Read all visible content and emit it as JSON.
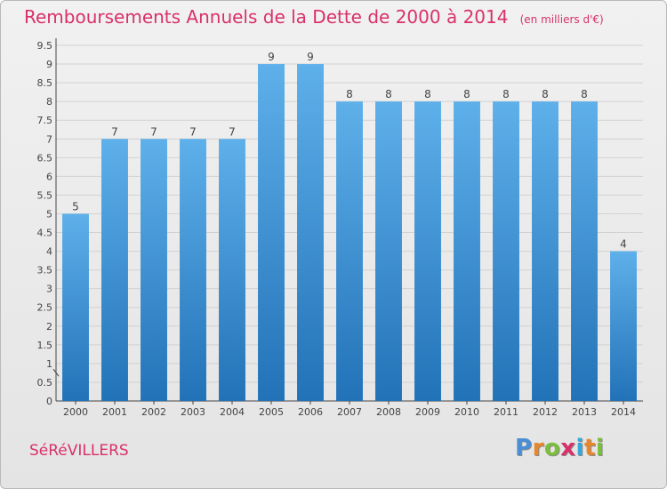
{
  "title": "Remboursements Annuels de la Dette de 2000 à 2014",
  "subtitle": "(en milliers d'€)",
  "commune": "SéRéVILLERS",
  "logo": {
    "letters": [
      "P",
      "r",
      "o",
      "x",
      "i",
      "t",
      "i"
    ],
    "colors": [
      "#4a8fd6",
      "#e8862a",
      "#7bbf3a",
      "#d9306a",
      "#3aa7d9",
      "#e8862a",
      "#7bbf3a"
    ]
  },
  "colors": {
    "accent": "#d9306a",
    "bar_top": "#5eb0ea",
    "bar_bottom": "#2272b8"
  },
  "chart_data": {
    "type": "bar",
    "categories": [
      "2000",
      "2001",
      "2002",
      "2003",
      "2004",
      "2005",
      "2006",
      "2007",
      "2008",
      "2009",
      "2010",
      "2011",
      "2012",
      "2013",
      "2014"
    ],
    "values": [
      5,
      7,
      7,
      7,
      7,
      9,
      9,
      8,
      8,
      8,
      8,
      8,
      8,
      8,
      4
    ],
    "data_labels": [
      "5",
      "7",
      "7",
      "7",
      "7",
      "9",
      "9",
      "8",
      "8",
      "8",
      "8",
      "8",
      "8",
      "8",
      "4"
    ],
    "yticks": [
      "0",
      "0.5",
      "1",
      "1.5",
      "2",
      "2.5",
      "3",
      "3.5",
      "4",
      "4.5",
      "5",
      "5.5",
      "6",
      "6.5",
      "7",
      "7.5",
      "8",
      "8.5",
      "9",
      "9.5"
    ],
    "ylim": [
      0,
      9.5
    ],
    "grid": "y"
  }
}
